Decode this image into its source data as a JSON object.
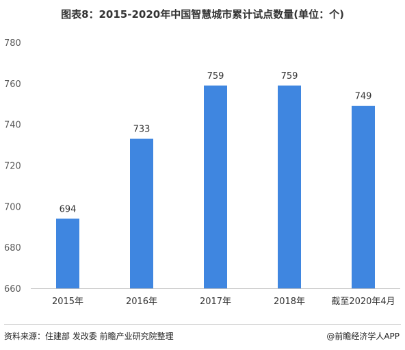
{
  "title": "图表8：2015-2020年中国智慧城市累计试点数量(单位：个)",
  "footer": {
    "source": "资料来源：住建部 发改委 前瞻产业研究院整理",
    "watermark": "@前瞻经济学人APP"
  },
  "colors": {
    "bar": "#3f86e0",
    "axis": "#bfbfbf"
  },
  "chart_data": {
    "type": "bar",
    "title": "图表8：2015-2020年中国智慧城市累计试点数量(单位：个)",
    "categories": [
      "2015年",
      "2016年",
      "2017年",
      "2018年",
      "截至2020年4月"
    ],
    "values": [
      694,
      733,
      759,
      759,
      749
    ],
    "data_labels": [
      "694",
      "733",
      "759",
      "759",
      "749"
    ],
    "yticks": [
      "660",
      "680",
      "700",
      "720",
      "740",
      "760",
      "780"
    ],
    "ylim": [
      660,
      780
    ],
    "xlabel": "",
    "ylabel": "",
    "grid": false,
    "legend": "none"
  }
}
